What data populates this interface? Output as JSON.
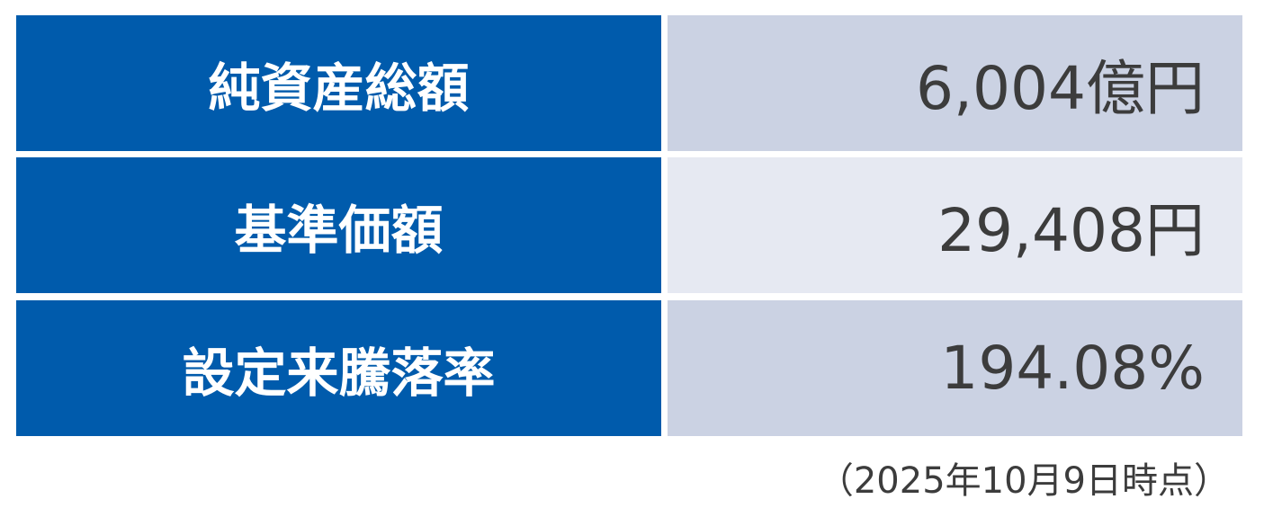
{
  "rows": [
    {
      "label": "純資産総額",
      "value": "6,004億円"
    },
    {
      "label": "基準価額",
      "value": "29,408円"
    },
    {
      "label": "設定来騰落率",
      "value": "194.08%"
    }
  ],
  "note": "（2025年10月9日時点）",
  "colors": {
    "label_bg": "#005bac",
    "value_bg_dark": "#cbd2e3",
    "value_bg_light": "#e6e9f2",
    "text": "#3c3c3c"
  }
}
